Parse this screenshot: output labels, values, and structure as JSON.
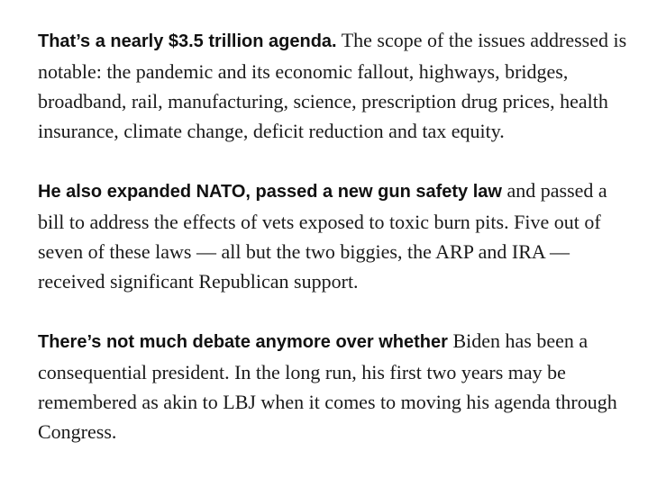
{
  "paragraphs": [
    {
      "lead": "That’s a nearly $3.5 trillion agenda.",
      "body": " The scope of the issues addressed is notable: the pandemic and its economic fallout, highways, bridges, broadband, rail, manufacturing, science, prescription drug prices, health insurance, climate change, deficit reduction and tax equity."
    },
    {
      "lead": "He also expanded NATO, passed a new gun safety law",
      "body": " and passed a bill to address the effects of vets exposed to toxic burn pits. Five out of seven of these laws — all but the two biggies, the ARP and IRA — received significant Republican support."
    },
    {
      "lead": "There’s not much debate anymore over whether",
      "body": " Biden has been a consequential president. In the long run, his first two years may be remembered as akin to LBJ when it comes to moving his agenda through Congress."
    }
  ]
}
